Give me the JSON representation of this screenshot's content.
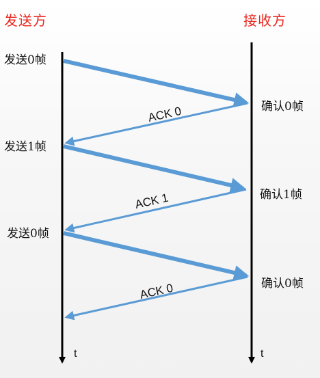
{
  "header": {
    "sender": "发送方",
    "receiver": "接收方",
    "color": "#e8271f"
  },
  "sender_events": [
    "发送0帧",
    "发送1帧",
    "发送0帧"
  ],
  "receiver_events": [
    "确认0帧",
    "确认1帧",
    "确认0帧"
  ],
  "acks": [
    "ACK 0",
    "ACK 1",
    "ACK 0"
  ],
  "time_label": "t",
  "arrow_color": "#5b9bd5",
  "line_color": "#000000"
}
